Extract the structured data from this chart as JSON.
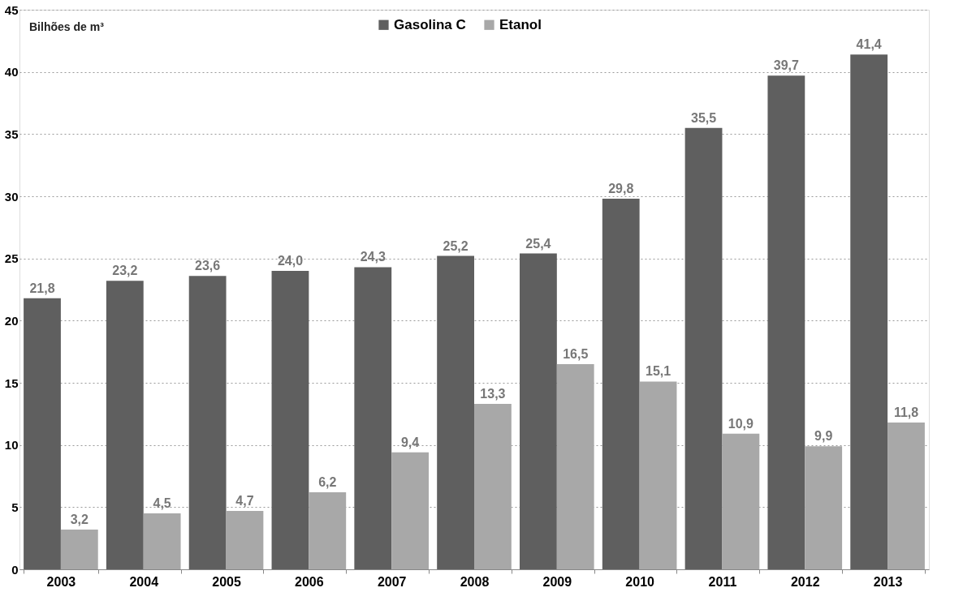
{
  "chart_data": {
    "type": "bar",
    "categories": [
      "2003",
      "2004",
      "2005",
      "2006",
      "2007",
      "2008",
      "2009",
      "2010",
      "2011",
      "2012",
      "2013"
    ],
    "series": [
      {
        "name": "Gasolina C",
        "color": "#5f5f5f",
        "values": [
          21.8,
          23.2,
          23.6,
          24.0,
          24.3,
          25.2,
          25.4,
          29.8,
          35.5,
          39.7,
          41.4
        ],
        "value_labels": [
          "21,8",
          "23,2",
          "23,6",
          "24,0",
          "24,3",
          "25,2",
          "25,4",
          "29,8",
          "35,5",
          "39,7",
          "41,4"
        ]
      },
      {
        "name": "Etanol",
        "color": "#a8a8a8",
        "values": [
          3.2,
          4.5,
          4.7,
          6.2,
          9.4,
          13.3,
          16.5,
          15.1,
          10.9,
          9.9,
          11.8
        ],
        "value_labels": [
          "3,2",
          "4,5",
          "4,7",
          "6,2",
          "9,4",
          "13,3",
          "16,5",
          "15,1",
          "10,9",
          "9,9",
          "11,8"
        ]
      }
    ],
    "ylim": [
      0,
      45
    ],
    "yticks": [
      0,
      5,
      10,
      15,
      20,
      25,
      30,
      35,
      40,
      45
    ],
    "grid": "y",
    "legend": "top",
    "annotations": [
      "Bilhões de m³"
    ]
  }
}
